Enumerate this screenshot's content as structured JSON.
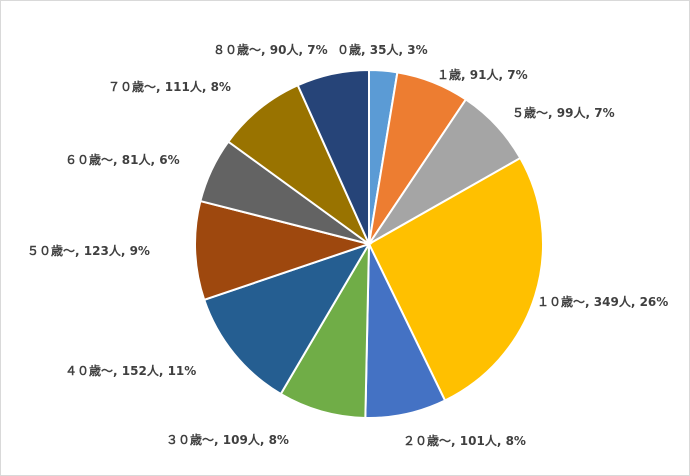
{
  "chart_data": {
    "type": "pie",
    "categories": [
      "０歳",
      "１歳",
      "５歳～",
      "１０歳～",
      "２０歳～",
      "３０歳～",
      "４０歳～",
      "５０歳～",
      "６０歳～",
      "７０歳～",
      "８０歳～"
    ],
    "values": [
      35,
      91,
      99,
      349,
      101,
      109,
      152,
      123,
      81,
      111,
      90
    ],
    "value_labels": [
      "35人",
      "91人",
      "99人",
      "349人",
      "101人",
      "109人",
      "152人",
      "123人",
      "81人",
      "111人",
      "90人"
    ],
    "percents": [
      3,
      7,
      7,
      26,
      8,
      8,
      11,
      9,
      6,
      8,
      7
    ],
    "percent_labels": [
      "3%",
      "7%",
      "7%",
      "26%",
      "8%",
      "8%",
      "11%",
      "9%",
      "6%",
      "8%",
      "7%"
    ],
    "label_separator": ", ",
    "colors": [
      "#5b9bd5",
      "#ed7d31",
      "#a5a5a5",
      "#ffc000",
      "#4472c4",
      "#70ad47",
      "#255e91",
      "#9e480e",
      "#636363",
      "#997300",
      "#264478"
    ]
  }
}
